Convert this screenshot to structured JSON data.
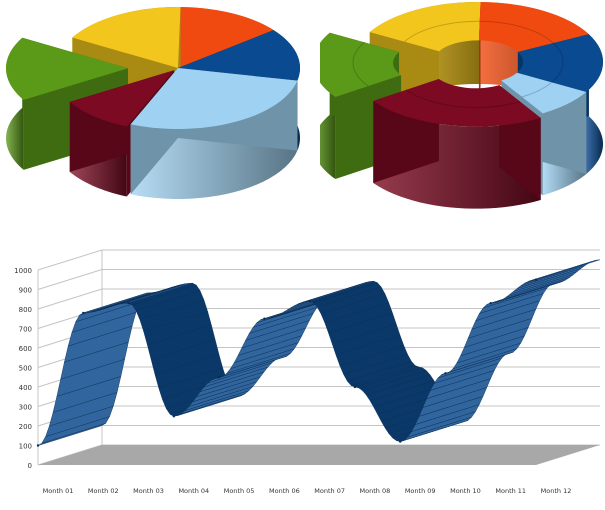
{
  "colors": {
    "yellow": "#f2c61c",
    "orange": "#f04a10",
    "navy": "#0a4a90",
    "lightblue": "#9fd2f2",
    "maroon": "#7c0a22",
    "green": "#5a9a18",
    "ribbon": "#0d4a8c",
    "grid": "#c4c4c4",
    "floor": "#a8a8a8"
  },
  "chart_data": [
    {
      "type": "pie",
      "style": "3d-exploded",
      "slices": [
        {
          "color": "yellow",
          "value": 17
        },
        {
          "color": "orange",
          "value": 14
        },
        {
          "color": "navy",
          "value": 14
        },
        {
          "color": "lightblue",
          "value": 28
        },
        {
          "color": "maroon",
          "value": 10
        },
        {
          "color": "green",
          "value": 17
        }
      ]
    },
    {
      "type": "pie",
      "style": "3d-donut-exploded",
      "slices": [
        {
          "color": "yellow",
          "value": 17
        },
        {
          "color": "orange",
          "value": 17
        },
        {
          "color": "navy",
          "value": 16
        },
        {
          "color": "lightblue",
          "value": 8
        },
        {
          "color": "maroon",
          "value": 24
        },
        {
          "color": "green",
          "value": 18
        }
      ]
    },
    {
      "type": "line",
      "style": "3d-ribbon",
      "categories": [
        "Month 01",
        "Month 02",
        "Month 03",
        "Month 04",
        "Month 05",
        "Month 06",
        "Month 07",
        "Month 08",
        "Month 09",
        "Month 10",
        "Month 11",
        "Month 12"
      ],
      "series": [
        {
          "values": [
            100,
            780,
            830,
            250,
            450,
            750,
            840,
            400,
            120,
            470,
            830,
            950
          ]
        }
      ],
      "ylim": [
        0,
        1000
      ],
      "yticks": [
        0,
        100,
        200,
        300,
        400,
        500,
        600,
        700,
        800,
        900,
        1000
      ],
      "grid": true
    }
  ]
}
